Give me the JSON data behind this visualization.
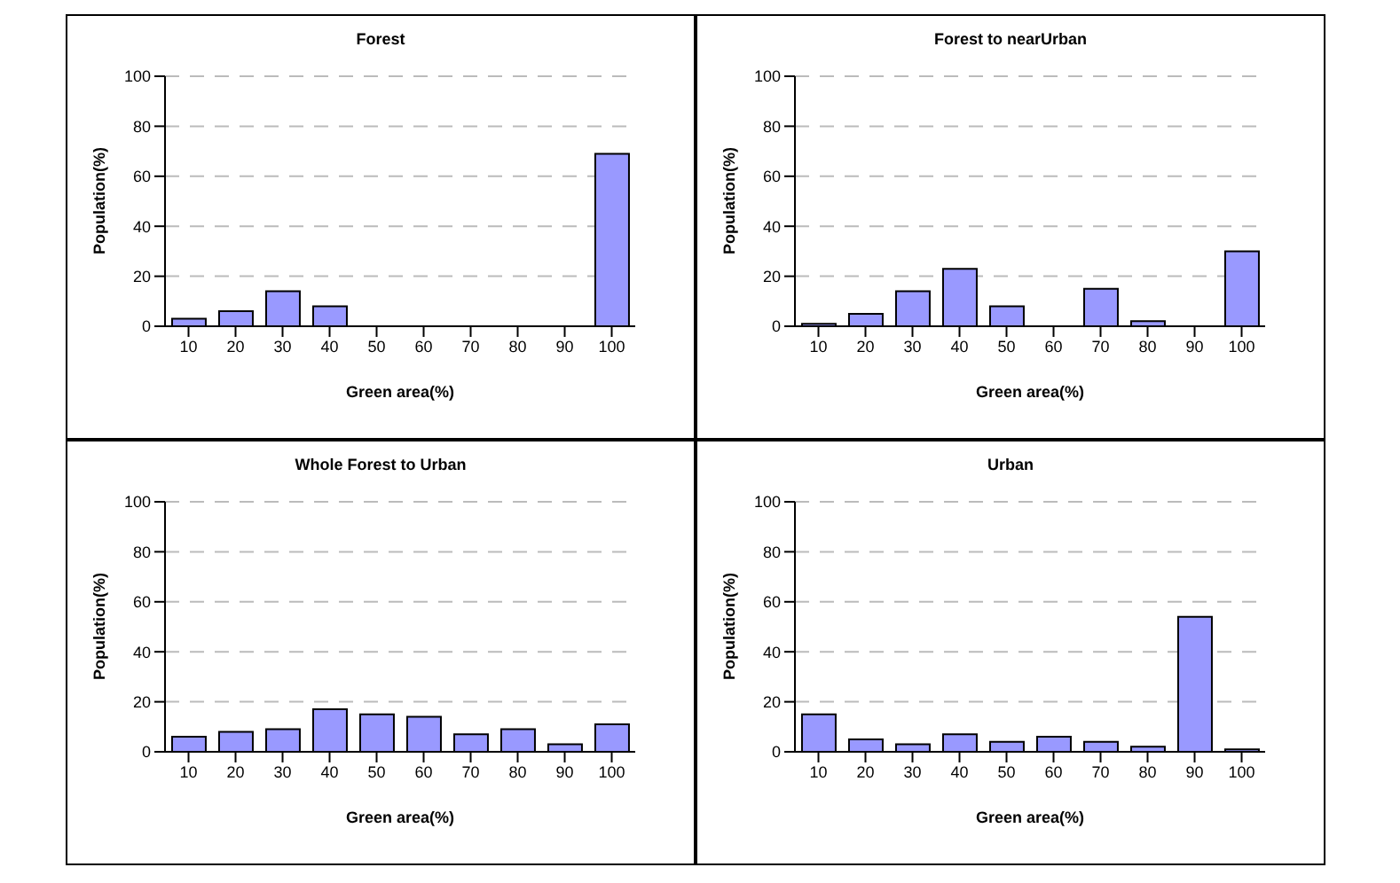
{
  "chart_data": [
    {
      "type": "bar",
      "title": "Forest",
      "xlabel": "Green area(%)",
      "ylabel": "Population(%)",
      "categories": [
        "10",
        "20",
        "30",
        "40",
        "50",
        "60",
        "70",
        "80",
        "90",
        "100"
      ],
      "values": [
        3,
        6,
        14,
        8,
        0,
        0,
        0,
        0,
        0,
        69
      ],
      "color": "#9999ff",
      "ylim": [
        0,
        100
      ],
      "yticks": [
        0,
        20,
        40,
        60,
        80,
        100
      ],
      "grid": "y",
      "legend": false
    },
    {
      "type": "bar",
      "title": "Forest to nearUrban",
      "xlabel": "Green area(%)",
      "ylabel": "Population(%)",
      "categories": [
        "10",
        "20",
        "30",
        "40",
        "50",
        "60",
        "70",
        "80",
        "90",
        "100"
      ],
      "values": [
        1,
        5,
        14,
        23,
        8,
        0,
        15,
        2,
        0,
        30
      ],
      "color": "#9999ff",
      "ylim": [
        0,
        100
      ],
      "yticks": [
        0,
        20,
        40,
        60,
        80,
        100
      ],
      "grid": "y",
      "legend": false
    },
    {
      "type": "bar",
      "title": "Whole Forest to Urban",
      "xlabel": "Green area(%)",
      "ylabel": "Population(%)",
      "categories": [
        "10",
        "20",
        "30",
        "40",
        "50",
        "60",
        "70",
        "80",
        "90",
        "100"
      ],
      "values": [
        6,
        8,
        9,
        17,
        15,
        14,
        7,
        9,
        3,
        11
      ],
      "color": "#9999ff",
      "ylim": [
        0,
        100
      ],
      "yticks": [
        0,
        20,
        40,
        60,
        80,
        100
      ],
      "grid": "y",
      "legend": false
    },
    {
      "type": "bar",
      "title": "Urban",
      "xlabel": "Green area(%)",
      "ylabel": "Population(%)",
      "categories": [
        "10",
        "20",
        "30",
        "40",
        "50",
        "60",
        "70",
        "80",
        "90",
        "100"
      ],
      "values": [
        15,
        5,
        3,
        7,
        4,
        6,
        4,
        2,
        54,
        1
      ],
      "color": "#9999ff",
      "ylim": [
        0,
        100
      ],
      "yticks": [
        0,
        20,
        40,
        60,
        80,
        100
      ],
      "grid": "y",
      "legend": false
    }
  ]
}
